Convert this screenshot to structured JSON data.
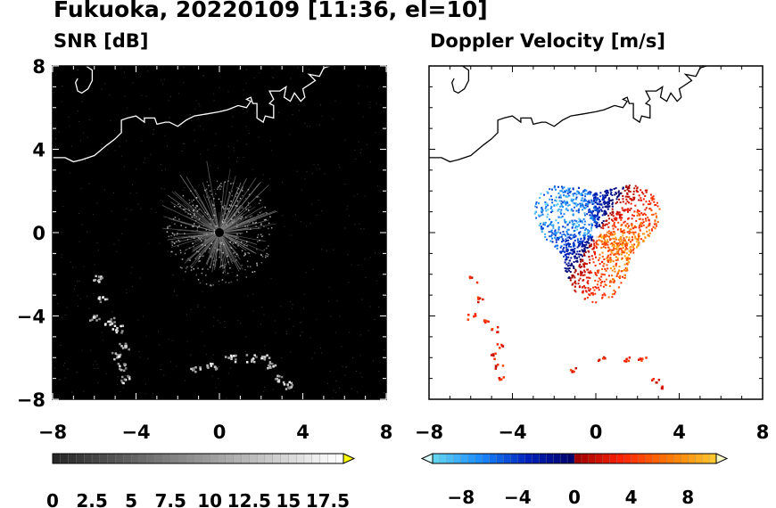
{
  "figure": {
    "title": "Fukuoka, 20220109 [11:36, el=10]"
  },
  "chart_data": [
    {
      "type": "heatmap",
      "title": "SNR [dB]",
      "xlim": [
        -8,
        8
      ],
      "ylim": [
        -8,
        8
      ],
      "x_ticks": [
        "−8",
        "−4",
        "0",
        "4",
        "8"
      ],
      "y_ticks": [
        "8",
        "4",
        "0",
        "−4",
        "−8"
      ],
      "background_color": "#000000",
      "colorbar": {
        "range": [
          0,
          18.5
        ],
        "extend": "max",
        "tick_labels": [
          "0",
          "2.5",
          "5",
          "7.5",
          "10",
          "12.5",
          "15",
          "17.5"
        ],
        "colors": [
          "#000000",
          "#ffffff",
          "#ffff00"
        ]
      },
      "echo_regions": [
        {
          "name": "radial echo around radar",
          "x": [
            -2,
            2
          ],
          "y": [
            -2,
            2.5
          ]
        },
        {
          "name": "echo band southwest",
          "x": [
            -6,
            -4
          ],
          "y": [
            -7,
            -2
          ]
        },
        {
          "name": "echo band south",
          "x": [
            -1.5,
            3.5
          ],
          "y": [
            -7.5,
            -5.7
          ]
        }
      ],
      "radar_position": [
        0,
        0
      ]
    },
    {
      "type": "heatmap",
      "title": "Doppler Velocity [m/s]",
      "xlim": [
        -8,
        8
      ],
      "ylim": [
        -8,
        8
      ],
      "x_ticks": [
        "−8",
        "−4",
        "0",
        "4",
        "8"
      ],
      "y_ticks": [
        "8",
        "4",
        "0",
        "−4",
        "−8"
      ],
      "background_color": "#ffffff",
      "colorbar": {
        "range": [
          -10,
          10
        ],
        "extend": "both",
        "tick_labels": [
          "−8",
          "−4",
          "0",
          "4",
          "8"
        ],
        "colors_negative": [
          "#d9ffff",
          "#66d9f0",
          "#1a8cff",
          "#0022bb",
          "#000066"
        ],
        "colors_positive": [
          "#990000",
          "#ff2200",
          "#ff7700",
          "#ffcc33",
          "#ffffcc"
        ]
      },
      "echo_regions": [
        {
          "name": "approaching (negative) northwest",
          "x": [
            -2,
            0.5
          ],
          "y": [
            -0.5,
            2.5
          ],
          "velocity_sign": "negative"
        },
        {
          "name": "receding (positive) southeast",
          "x": [
            -1,
            3
          ],
          "y": [
            -2,
            0.5
          ],
          "velocity_sign": "positive"
        },
        {
          "name": "echo band southwest",
          "x": [
            -6,
            -4
          ],
          "y": [
            -7,
            -2
          ],
          "velocity_sign": "positive"
        },
        {
          "name": "echo band south",
          "x": [
            -1.5,
            3.5
          ],
          "y": [
            -7.5,
            -5.7
          ],
          "velocity_sign": "positive"
        }
      ],
      "radar_position": [
        0,
        0
      ]
    }
  ]
}
